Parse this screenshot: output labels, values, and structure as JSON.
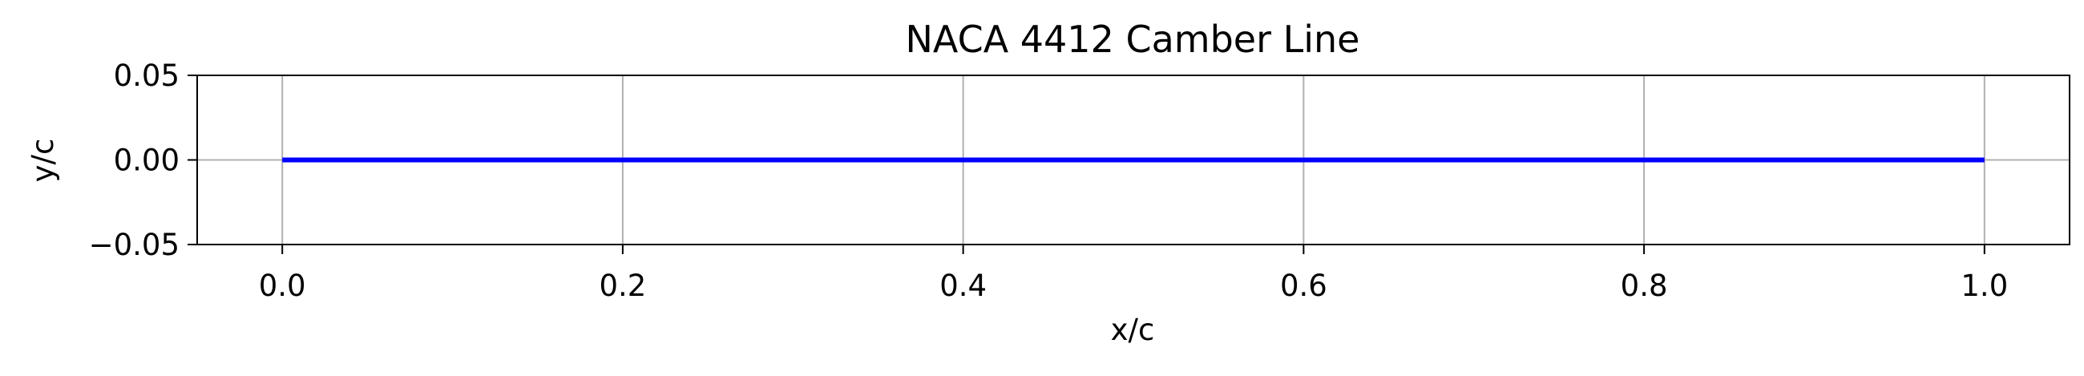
{
  "chart_data": {
    "type": "line",
    "title": "NACA 4412 Camber Line",
    "xlabel": "x/c",
    "ylabel": "y/c",
    "xlim": [
      -0.05,
      1.05
    ],
    "ylim": [
      -0.05,
      0.05
    ],
    "xticks": [
      0.0,
      0.2,
      0.4,
      0.6,
      0.8,
      1.0
    ],
    "xtick_labels": [
      "0.0",
      "0.2",
      "0.4",
      "0.6",
      "0.8",
      "1.0"
    ],
    "yticks": [
      0.05,
      0.0,
      -0.05
    ],
    "ytick_labels": [
      "0.05",
      "0.00",
      "−0.05"
    ],
    "grid": true,
    "series": [
      {
        "color": "#0000ff",
        "x": [
          0.0,
          0.1,
          0.2,
          0.3,
          0.4,
          0.5,
          0.6,
          0.7,
          0.8,
          0.9,
          1.0
        ],
        "y": [
          0.0,
          0.0,
          0.0,
          0.0,
          0.0,
          0.0,
          0.0,
          0.0,
          0.0,
          0.0,
          0.0
        ]
      }
    ],
    "colors": {
      "grid": "#b0b0b0",
      "frame": "#000000"
    }
  }
}
